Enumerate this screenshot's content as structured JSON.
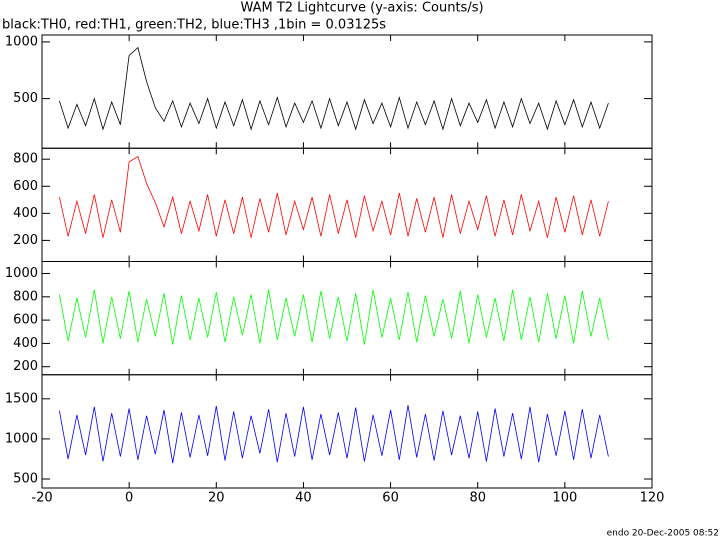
{
  "chart_data": {
    "type": "line",
    "title": "WAM T2 Lightcurve (y-axis: Counts/s)",
    "subtitle": "black:TH0, red:TH1, green:TH2, blue:TH3 ,1bin = 0.03125s",
    "footer": "endo 20-Dec-2005 08:52",
    "xlim": [
      -20,
      120
    ],
    "xticks": [
      -20,
      0,
      20,
      40,
      60,
      80,
      100,
      120
    ],
    "x": [
      -16,
      -14,
      -12,
      -10,
      -8,
      -6,
      -4,
      -2,
      0,
      2,
      4,
      6,
      8,
      10,
      12,
      14,
      16,
      18,
      20,
      22,
      24,
      26,
      28,
      30,
      32,
      34,
      36,
      38,
      40,
      42,
      44,
      46,
      48,
      50,
      52,
      54,
      56,
      58,
      60,
      62,
      64,
      66,
      68,
      70,
      72,
      74,
      76,
      78,
      80,
      82,
      84,
      86,
      88,
      90,
      92,
      94,
      96,
      98,
      100,
      102,
      104,
      106,
      108,
      110
    ],
    "series": [
      {
        "color": "#000000",
        "ylim": [
          62,
          1061
        ],
        "yticks": [
          500,
          1000
        ],
        "values": [
          480,
          240,
          450,
          260,
          500,
          230,
          470,
          270,
          880,
          950,
          650,
          420,
          300,
          480,
          250,
          460,
          280,
          500,
          240,
          470,
          260,
          490,
          230,
          480,
          270,
          510,
          250,
          460,
          290,
          480,
          240,
          500,
          260,
          470,
          230,
          490,
          280,
          460,
          250,
          510,
          240,
          470,
          270,
          480,
          230,
          500,
          260,
          460,
          290,
          490,
          240,
          470,
          250,
          500,
          280,
          460,
          230,
          480,
          270,
          490,
          250,
          470,
          240,
          460
        ]
      },
      {
        "color": "#ff0000",
        "ylim": [
          44,
          881
        ],
        "yticks": [
          200,
          400,
          600,
          800
        ],
        "values": [
          520,
          230,
          490,
          250,
          540,
          220,
          500,
          260,
          780,
          820,
          620,
          480,
          300,
          520,
          250,
          490,
          270,
          540,
          230,
          500,
          250,
          520,
          220,
          510,
          260,
          550,
          240,
          490,
          280,
          520,
          230,
          540,
          250,
          500,
          220,
          530,
          270,
          490,
          240,
          550,
          230,
          510,
          260,
          520,
          220,
          540,
          250,
          490,
          280,
          530,
          230,
          500,
          240,
          540,
          270,
          490,
          220,
          520,
          260,
          530,
          240,
          500,
          230,
          490
        ]
      },
      {
        "color": "#00ff00",
        "ylim": [
          131,
          1103
        ],
        "yticks": [
          200,
          400,
          600,
          800,
          1000
        ],
        "values": [
          820,
          420,
          790,
          450,
          860,
          400,
          800,
          440,
          850,
          410,
          780,
          460,
          830,
          390,
          810,
          430,
          790,
          450,
          840,
          410,
          800,
          470,
          820,
          400,
          860,
          430,
          790,
          460,
          820,
          410,
          850,
          440,
          800,
          420,
          830,
          390,
          860,
          450,
          790,
          430,
          840,
          410,
          810,
          460,
          780,
          440,
          850,
          400,
          820,
          450,
          790,
          420,
          860,
          430,
          800,
          410,
          830,
          440,
          810,
          400,
          850,
          460,
          790,
          430
        ]
      },
      {
        "color": "#0000ff",
        "ylim": [
          388,
          1800
        ],
        "yticks": [
          500,
          1000,
          1500
        ],
        "values": [
          1350,
          750,
          1300,
          800,
          1400,
          720,
          1320,
          780,
          1380,
          740,
          1290,
          810,
          1360,
          700,
          1330,
          770,
          1300,
          790,
          1410,
          730,
          1340,
          760,
          1290,
          820,
          1370,
          710,
          1320,
          780,
          1400,
          740,
          1310,
          800,
          1330,
          760,
          1390,
          720,
          1300,
          790,
          1360,
          740,
          1420,
          770,
          1310,
          730,
          1350,
          800,
          1290,
          760,
          1340,
          720,
          1380,
          780,
          1320,
          750,
          1400,
          710,
          1310,
          790,
          1350,
          740,
          1370,
          760,
          1300,
          780
        ]
      }
    ]
  }
}
